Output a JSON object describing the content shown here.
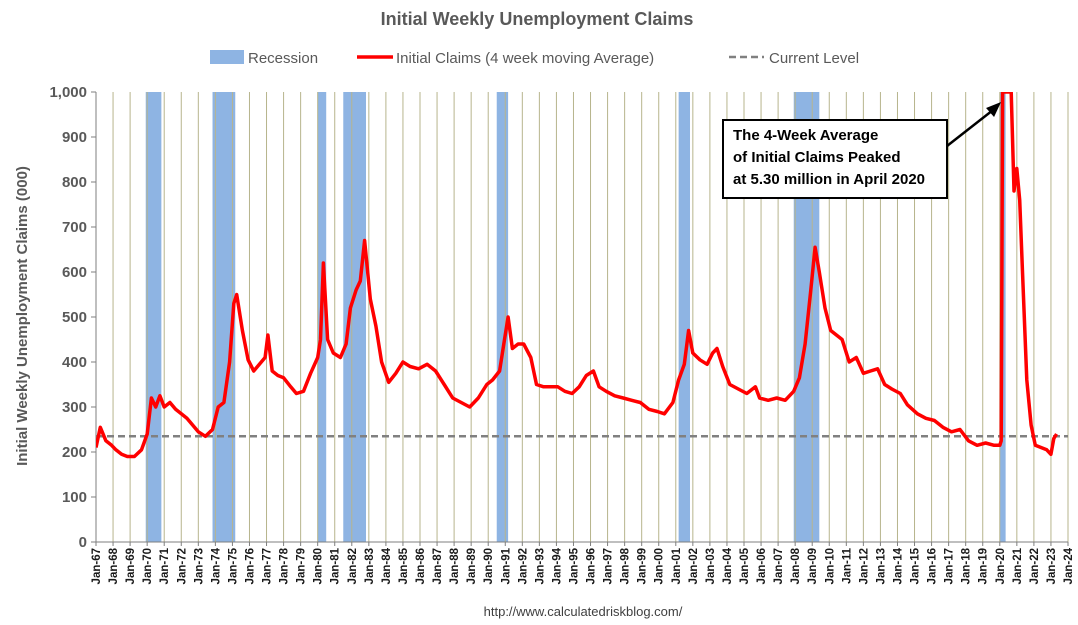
{
  "chart_data": {
    "type": "line",
    "title": "Initial Weekly Unemployment Claims",
    "ylabel": "Initial Weekly Unemployment Claims (000)",
    "xlabel": "",
    "ylim": [
      0,
      1000
    ],
    "xlim": [
      "1967-01",
      "2024-01"
    ],
    "y_ticks": [
      "0",
      "100",
      "200",
      "300",
      "400",
      "500",
      "600",
      "700",
      "800",
      "900",
      "1,000"
    ],
    "x_ticks": [
      "Jan-67",
      "Jan-68",
      "Jan-69",
      "Jan-70",
      "Jan-71",
      "Jan-72",
      "Jan-73",
      "Jan-74",
      "Jan-75",
      "Jan-76",
      "Jan-77",
      "Jan-78",
      "Jan-79",
      "Jan-80",
      "Jan-81",
      "Jan-82",
      "Jan-83",
      "Jan-84",
      "Jan-85",
      "Jan-86",
      "Jan-87",
      "Jan-88",
      "Jan-89",
      "Jan-90",
      "Jan-91",
      "Jan-92",
      "Jan-93",
      "Jan-94",
      "Jan-95",
      "Jan-96",
      "Jan-97",
      "Jan-98",
      "Jan-99",
      "Jan-00",
      "Jan-01",
      "Jan-02",
      "Jan-03",
      "Jan-04",
      "Jan-05",
      "Jan-06",
      "Jan-07",
      "Jan-08",
      "Jan-09",
      "Jan-10",
      "Jan-11",
      "Jan-12",
      "Jan-13",
      "Jan-14",
      "Jan-15",
      "Jan-16",
      "Jan-17",
      "Jan-18",
      "Jan-19",
      "Jan-20",
      "Jan-21",
      "Jan-22",
      "Jan-23",
      "Jan-24"
    ],
    "grid": "vertical lines at each year",
    "legend": {
      "position": "top",
      "entries": [
        {
          "label": "Recession",
          "style": "band",
          "color": "#8eb4e3"
        },
        {
          "label": "Initial Claims (4 week moving Average)",
          "style": "line",
          "color": "#ff0000"
        },
        {
          "label": "Current Level",
          "style": "dashed",
          "color": "#808080"
        }
      ]
    },
    "current_level": 235,
    "recessions": [
      [
        "1969-12",
        "1970-11"
      ],
      [
        "1973-11",
        "1975-03"
      ],
      [
        "1980-01",
        "1980-07"
      ],
      [
        "1981-07",
        "1982-11"
      ],
      [
        "1990-07",
        "1991-03"
      ],
      [
        "2001-03",
        "2001-11"
      ],
      [
        "2007-12",
        "2009-06"
      ],
      [
        "2020-02",
        "2020-04"
      ]
    ],
    "series": [
      {
        "name": "Initial Claims (4 week moving Average)",
        "color": "#ff0000",
        "points": [
          [
            "1967-01",
            210
          ],
          [
            "1967-04",
            255
          ],
          [
            "1967-08",
            225
          ],
          [
            "1967-12",
            215
          ],
          [
            "1968-03",
            205
          ],
          [
            "1968-07",
            195
          ],
          [
            "1968-11",
            190
          ],
          [
            "1969-04",
            190
          ],
          [
            "1969-09",
            205
          ],
          [
            "1970-01",
            240
          ],
          [
            "1970-04",
            320
          ],
          [
            "1970-07",
            300
          ],
          [
            "1970-10",
            325
          ],
          [
            "1971-01",
            300
          ],
          [
            "1971-05",
            310
          ],
          [
            "1971-09",
            295
          ],
          [
            "1972-01",
            285
          ],
          [
            "1972-05",
            275
          ],
          [
            "1972-09",
            260
          ],
          [
            "1973-01",
            245
          ],
          [
            "1973-06",
            235
          ],
          [
            "1973-11",
            250
          ],
          [
            "1974-03",
            300
          ],
          [
            "1974-07",
            310
          ],
          [
            "1974-11",
            400
          ],
          [
            "1975-02",
            530
          ],
          [
            "1975-04",
            550
          ],
          [
            "1975-08",
            470
          ],
          [
            "1975-12",
            405
          ],
          [
            "1976-04",
            380
          ],
          [
            "1976-08",
            395
          ],
          [
            "1976-12",
            410
          ],
          [
            "1977-02",
            460
          ],
          [
            "1977-05",
            380
          ],
          [
            "1977-09",
            370
          ],
          [
            "1978-01",
            365
          ],
          [
            "1978-06",
            345
          ],
          [
            "1978-10",
            330
          ],
          [
            "1979-03",
            335
          ],
          [
            "1979-08",
            375
          ],
          [
            "1980-01",
            410
          ],
          [
            "1980-03",
            450
          ],
          [
            "1980-05",
            620
          ],
          [
            "1980-08",
            450
          ],
          [
            "1980-12",
            420
          ],
          [
            "1981-05",
            410
          ],
          [
            "1981-09",
            440
          ],
          [
            "1981-12",
            520
          ],
          [
            "1982-04",
            560
          ],
          [
            "1982-07",
            580
          ],
          [
            "1982-10",
            670
          ],
          [
            "1983-02",
            540
          ],
          [
            "1983-06",
            480
          ],
          [
            "1983-10",
            400
          ],
          [
            "1984-03",
            355
          ],
          [
            "1984-08",
            375
          ],
          [
            "1985-01",
            400
          ],
          [
            "1985-06",
            390
          ],
          [
            "1985-12",
            385
          ],
          [
            "1986-06",
            395
          ],
          [
            "1986-12",
            380
          ],
          [
            "1987-06",
            350
          ],
          [
            "1987-12",
            320
          ],
          [
            "1988-06",
            310
          ],
          [
            "1988-12",
            300
          ],
          [
            "1989-06",
            320
          ],
          [
            "1989-12",
            350
          ],
          [
            "1990-04",
            360
          ],
          [
            "1990-09",
            380
          ],
          [
            "1990-12",
            440
          ],
          [
            "1991-03",
            500
          ],
          [
            "1991-06",
            430
          ],
          [
            "1991-10",
            440
          ],
          [
            "1992-02",
            440
          ],
          [
            "1992-07",
            410
          ],
          [
            "1992-11",
            350
          ],
          [
            "1993-04",
            345
          ],
          [
            "1993-09",
            345
          ],
          [
            "1994-02",
            345
          ],
          [
            "1994-07",
            335
          ],
          [
            "1994-12",
            330
          ],
          [
            "1995-05",
            345
          ],
          [
            "1995-10",
            370
          ],
          [
            "1996-03",
            380
          ],
          [
            "1996-07",
            345
          ],
          [
            "1996-12",
            335
          ],
          [
            "1997-06",
            325
          ],
          [
            "1997-12",
            320
          ],
          [
            "1998-06",
            315
          ],
          [
            "1998-12",
            310
          ],
          [
            "1999-06",
            295
          ],
          [
            "1999-12",
            290
          ],
          [
            "2000-05",
            285
          ],
          [
            "2000-11",
            310
          ],
          [
            "2001-03",
            360
          ],
          [
            "2001-07",
            395
          ],
          [
            "2001-10",
            470
          ],
          [
            "2002-01",
            420
          ],
          [
            "2002-06",
            405
          ],
          [
            "2002-11",
            395
          ],
          [
            "2003-03",
            420
          ],
          [
            "2003-06",
            430
          ],
          [
            "2003-10",
            390
          ],
          [
            "2004-03",
            350
          ],
          [
            "2004-09",
            340
          ],
          [
            "2005-03",
            330
          ],
          [
            "2005-09",
            345
          ],
          [
            "2005-12",
            320
          ],
          [
            "2006-06",
            315
          ],
          [
            "2006-12",
            320
          ],
          [
            "2007-06",
            315
          ],
          [
            "2007-12",
            335
          ],
          [
            "2008-04",
            365
          ],
          [
            "2008-08",
            440
          ],
          [
            "2008-12",
            560
          ],
          [
            "2009-03",
            655
          ],
          [
            "2009-06",
            600
          ],
          [
            "2009-10",
            520
          ],
          [
            "2010-02",
            470
          ],
          [
            "2010-06",
            460
          ],
          [
            "2010-10",
            450
          ],
          [
            "2011-03",
            400
          ],
          [
            "2011-08",
            410
          ],
          [
            "2012-01",
            375
          ],
          [
            "2012-06",
            380
          ],
          [
            "2012-11",
            385
          ],
          [
            "2013-04",
            350
          ],
          [
            "2013-09",
            340
          ],
          [
            "2014-03",
            330
          ],
          [
            "2014-08",
            305
          ],
          [
            "2015-03",
            285
          ],
          [
            "2015-09",
            275
          ],
          [
            "2016-03",
            270
          ],
          [
            "2016-09",
            255
          ],
          [
            "2017-03",
            245
          ],
          [
            "2017-09",
            250
          ],
          [
            "2018-03",
            225
          ],
          [
            "2018-09",
            215
          ],
          [
            "2019-03",
            220
          ],
          [
            "2019-09",
            215
          ],
          [
            "2020-01",
            215
          ],
          [
            "2020-02",
            225
          ],
          [
            "2020-03",
            1000
          ],
          [
            "2020-04",
            1000
          ],
          [
            "2020-06",
            1000
          ],
          [
            "2020-09",
            1000
          ],
          [
            "2020-11",
            780
          ],
          [
            "2021-01",
            830
          ],
          [
            "2021-03",
            760
          ],
          [
            "2021-05",
            600
          ],
          [
            "2021-08",
            360
          ],
          [
            "2021-11",
            260
          ],
          [
            "2022-02",
            215
          ],
          [
            "2022-06",
            210
          ],
          [
            "2022-10",
            205
          ],
          [
            "2023-01",
            195
          ],
          [
            "2023-03",
            230
          ],
          [
            "2023-05",
            240
          ]
        ]
      }
    ],
    "annotation": {
      "lines": [
        "The 4-Week Average",
        "of Initial Claims Peaked",
        "at 5.30 million in April 2020"
      ],
      "points_to": [
        "2020-04",
        1000
      ]
    },
    "source": "http://www.calculatedriskblog.com/"
  }
}
